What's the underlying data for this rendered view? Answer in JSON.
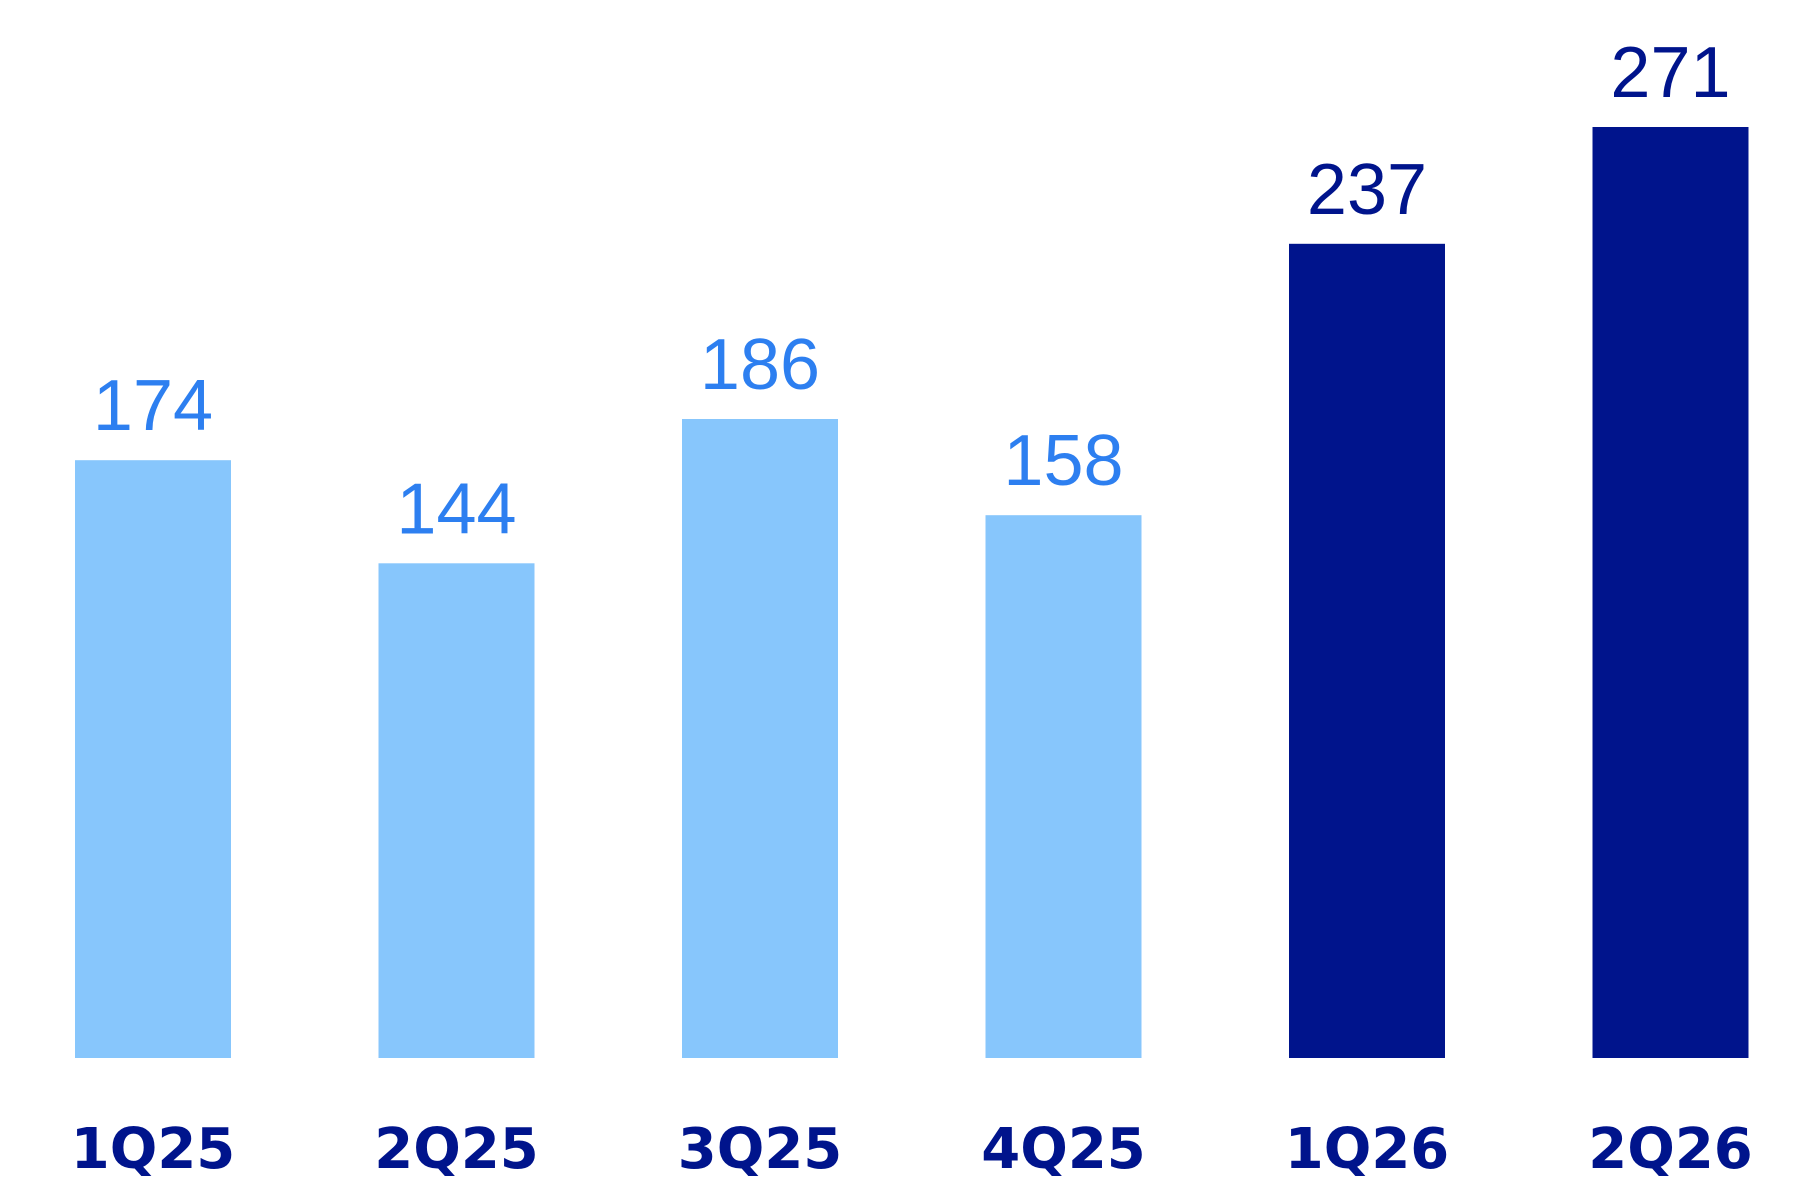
{
  "chart_data": {
    "type": "bar",
    "categories": [
      "1Q25",
      "2Q25",
      "3Q25",
      "4Q25",
      "1Q26",
      "2Q26"
    ],
    "values": [
      174,
      144,
      186,
      158,
      237,
      271
    ],
    "data_labels": [
      "174",
      "144",
      "186",
      "158",
      "237",
      "271"
    ],
    "title": "",
    "xlabel": "",
    "ylabel": "",
    "ylim": [
      0,
      271
    ],
    "grid": false,
    "legend": "none",
    "bar_colors": [
      "#87c6fc",
      "#87c6fc",
      "#87c6fc",
      "#87c6fc",
      "#00148c",
      "#00148c"
    ],
    "label_colors": [
      "#2d7ff0",
      "#2d7ff0",
      "#2d7ff0",
      "#2d7ff0",
      "#00148c",
      "#00148c"
    ],
    "category_label_color": "#00148c"
  }
}
